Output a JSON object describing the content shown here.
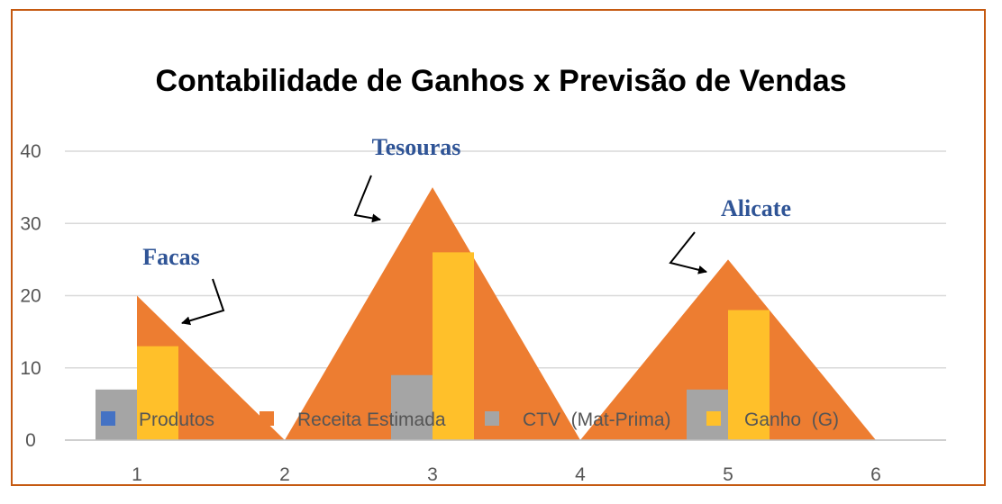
{
  "chart_data": {
    "type": "area",
    "title": "Contabilidade de Ganhos x Previsão de Vendas",
    "xlabel": "",
    "ylabel": "",
    "x": [
      1,
      2,
      3,
      4,
      5,
      6
    ],
    "ylim": [
      0,
      40
    ],
    "yticks": [
      0,
      10,
      20,
      30,
      40
    ],
    "grid": true,
    "legend_position": "bottom-inside",
    "series": [
      {
        "name": "Produtos",
        "kind": "bar",
        "color": "#4472c4",
        "values": [
          0,
          0,
          0,
          0,
          0,
          0
        ]
      },
      {
        "name": "Receita Estimada",
        "kind": "area",
        "color": "#ed7d31",
        "values": [
          20,
          0,
          35,
          0,
          25,
          0
        ]
      },
      {
        "name": "CTV  (Mat-Prima)",
        "kind": "bar",
        "color": "#a5a5a5",
        "values": [
          7,
          0,
          9,
          0,
          7,
          0
        ]
      },
      {
        "name": "Ganho  (G)",
        "kind": "bar",
        "color": "#ffc02a",
        "values": [
          13,
          0,
          26,
          0,
          18,
          0
        ]
      }
    ],
    "annotations": [
      {
        "text": "Facas",
        "x": 1.2,
        "y": 17
      },
      {
        "text": "Tesouras",
        "x": 3.2,
        "y": 36
      },
      {
        "text": "Alicate",
        "x": 5.2,
        "y": 26
      }
    ]
  }
}
